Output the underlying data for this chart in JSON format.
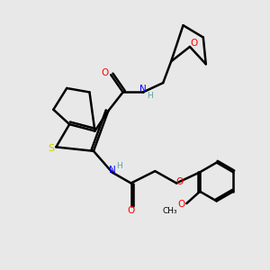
{
  "bg_color": "#e8e8e8",
  "bond_color": "#000000",
  "S_color": "#cccc00",
  "N_color": "#0000ff",
  "O_color": "#ff0000",
  "H_color": "#5f9ea0",
  "figsize": [
    3.0,
    3.0
  ],
  "dpi": 100,
  "xlim": [
    0,
    10
  ],
  "ylim": [
    0,
    10
  ]
}
